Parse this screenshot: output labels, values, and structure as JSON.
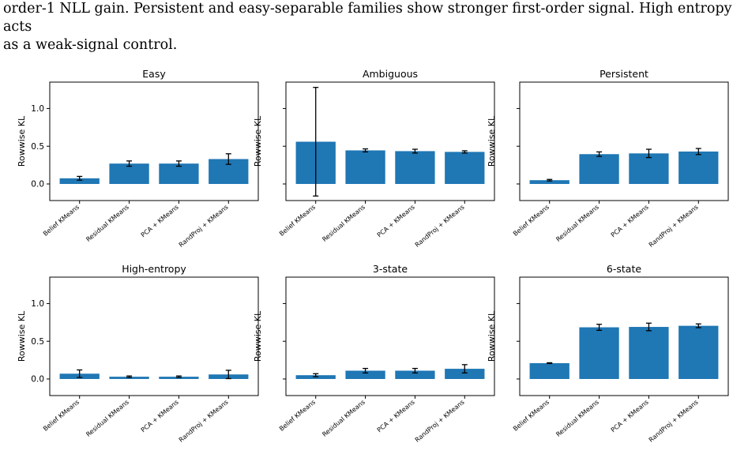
{
  "caption": {
    "line1": "order-1 NLL gain. Persistent and easy-separable families show stronger first-order signal. High entropy acts",
    "line2": "as a weak-signal control."
  },
  "colors": {
    "bar": "#1f77b4",
    "errorbar": "#000000",
    "axes": "#000000"
  },
  "chart_data": [
    {
      "type": "bar",
      "title": "Easy",
      "ylabel": "Rowwise KL",
      "categories": [
        "Belief KMeans",
        "Residual KMeans",
        "PCA + KMeans",
        "RandProj + KMeans"
      ],
      "values": [
        0.075,
        0.27,
        0.27,
        0.33
      ],
      "errors": [
        0.025,
        0.035,
        0.035,
        0.07
      ],
      "ylim": [
        -0.22,
        1.35
      ],
      "yticks": [
        0.0,
        0.5,
        1.0
      ],
      "yticklabels": [
        "0.0",
        "0.5",
        "1.0"
      ],
      "show_yticklabels": true
    },
    {
      "type": "bar",
      "title": "Ambiguous",
      "ylabel": "Rowwise KL",
      "categories": [
        "Belief KMeans",
        "Residual KMeans",
        "PCA + KMeans",
        "RandProj + KMeans"
      ],
      "values": [
        0.56,
        0.445,
        0.435,
        0.425
      ],
      "errors": [
        0.72,
        0.02,
        0.025,
        0.015
      ],
      "ylim": [
        -0.22,
        1.35
      ],
      "yticks": [
        0.0,
        0.5,
        1.0
      ],
      "yticklabels": [
        "0.0",
        "0.5",
        "1.0"
      ],
      "show_yticklabels": false
    },
    {
      "type": "bar",
      "title": "Persistent",
      "ylabel": "Rowwise KL",
      "categories": [
        "Belief KMeans",
        "Residual KMeans",
        "PCA + KMeans",
        "RandProj + KMeans"
      ],
      "values": [
        0.05,
        0.395,
        0.405,
        0.43
      ],
      "errors": [
        0.01,
        0.03,
        0.055,
        0.04
      ],
      "ylim": [
        -0.22,
        1.35
      ],
      "yticks": [
        0.0,
        0.5,
        1.0
      ],
      "yticklabels": [
        "0.0",
        "0.5",
        "1.0"
      ],
      "show_yticklabels": false
    },
    {
      "type": "bar",
      "title": "High-entropy",
      "ylabel": "Rowwise KL",
      "categories": [
        "Belief KMeans",
        "Residual KMeans",
        "PCA + KMeans",
        "RandProj + KMeans"
      ],
      "values": [
        0.07,
        0.03,
        0.03,
        0.06
      ],
      "errors": [
        0.05,
        0.01,
        0.01,
        0.055
      ],
      "ylim": [
        -0.22,
        1.35
      ],
      "yticks": [
        0.0,
        0.5,
        1.0
      ],
      "yticklabels": [
        "0.0",
        "0.5",
        "1.0"
      ],
      "show_yticklabels": true
    },
    {
      "type": "bar",
      "title": "3-state",
      "ylabel": "Rowwise KL",
      "categories": [
        "Belief KMeans",
        "Residual KMeans",
        "PCA + KMeans",
        "RandProj + KMeans"
      ],
      "values": [
        0.05,
        0.11,
        0.11,
        0.135
      ],
      "errors": [
        0.02,
        0.03,
        0.03,
        0.055
      ],
      "ylim": [
        -0.22,
        1.35
      ],
      "yticks": [
        0.0,
        0.5,
        1.0
      ],
      "yticklabels": [
        "0.0",
        "0.5",
        "1.0"
      ],
      "show_yticklabels": false
    },
    {
      "type": "bar",
      "title": "6-state",
      "ylabel": "Rowwise KL",
      "categories": [
        "Belief KMeans",
        "Residual KMeans",
        "PCA + KMeans",
        "RandProj + KMeans"
      ],
      "values": [
        0.21,
        0.685,
        0.69,
        0.705
      ],
      "errors": [
        0.005,
        0.04,
        0.05,
        0.025
      ],
      "ylim": [
        -0.22,
        1.35
      ],
      "yticks": [
        0.0,
        0.5,
        1.0
      ],
      "yticklabels": [
        "0.0",
        "0.5",
        "1.0"
      ],
      "show_yticklabels": false
    }
  ]
}
